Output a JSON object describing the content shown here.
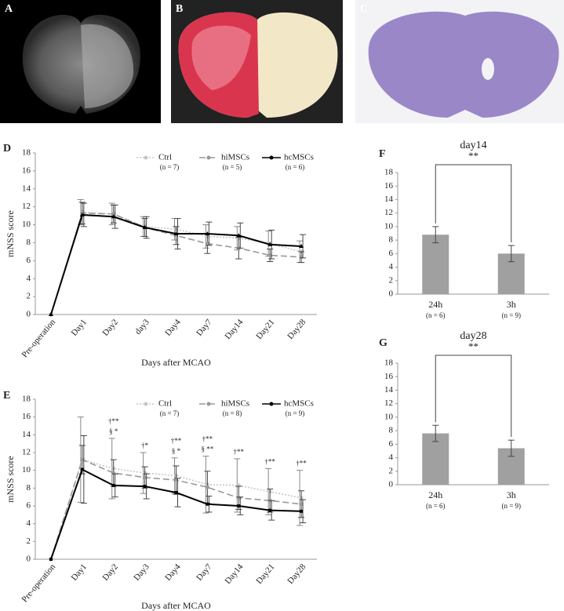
{
  "image_panels": [
    {
      "label": "A"
    },
    {
      "label": "B"
    },
    {
      "label": "C"
    }
  ],
  "chart_data": [
    {
      "type": "line",
      "panel_label": "D",
      "x_label": "Days after MCAO",
      "y_label": "mNSS score",
      "categories": [
        "Pre-operation",
        "Day1",
        "Day2",
        "day3",
        "Day4",
        "Day7",
        "Day14",
        "Day21",
        "Day28"
      ],
      "ylim": [
        0,
        18
      ],
      "yticks": [
        0,
        2,
        4,
        6,
        8,
        10,
        12,
        14,
        16,
        18
      ],
      "grid": false,
      "legend": "upper right",
      "series": [
        {
          "name": "Ctrl",
          "n_label": "(n = 7)",
          "color": "#c6c6c6",
          "dash": "dotted",
          "marker": "circle",
          "values": [
            0,
            11.4,
            11.2,
            9.8,
            9.5,
            8.7,
            8.5,
            7.9,
            7.0
          ],
          "errors": [
            0,
            1.4,
            1.2,
            1.1,
            1.2,
            1.3,
            1.3,
            1.4,
            1.2
          ]
        },
        {
          "name": "hiMSCs",
          "n_label": "(n = 5)",
          "color": "#999999",
          "dash": "dashed",
          "marker": "circle",
          "values": [
            0,
            11.3,
            11.2,
            9.7,
            8.8,
            7.9,
            7.4,
            6.6,
            6.4
          ],
          "errors": [
            0,
            1.2,
            1.0,
            1.0,
            1.0,
            1.1,
            1.2,
            0.7,
            0.6
          ]
        },
        {
          "name": "hcMSCs",
          "n_label": "(n = 6)",
          "color": "#000000",
          "dash": "solid",
          "marker": "triangle",
          "values": [
            0,
            11.1,
            10.9,
            9.7,
            9.0,
            9.0,
            8.8,
            7.8,
            7.6
          ],
          "errors": [
            0,
            1.3,
            1.3,
            1.2,
            1.7,
            1.3,
            1.4,
            1.6,
            1.3
          ]
        }
      ]
    },
    {
      "type": "line",
      "panel_label": "E",
      "x_label": "Days after MCAO",
      "y_label": "mNSS score",
      "categories": [
        "Pre-operation",
        "Day1",
        "Day2",
        "Day3",
        "Day4",
        "Day7",
        "Day14",
        "Day21",
        "Day28"
      ],
      "ylim": [
        0,
        18
      ],
      "yticks": [
        0,
        2,
        4,
        6,
        8,
        10,
        12,
        14,
        16,
        18
      ],
      "grid": false,
      "legend": "upper right",
      "annotations": [
        null,
        null,
        [
          "†**",
          "§ *"
        ],
        [
          "†*"
        ],
        [
          "†**",
          "§ *"
        ],
        [
          "†**",
          "§ **"
        ],
        [
          "†**"
        ],
        [
          "†**"
        ],
        [
          "†**"
        ]
      ],
      "series": [
        {
          "name": "Ctrl",
          "n_label": "(n = 7)",
          "color": "#c6c6c6",
          "dash": "dotted",
          "marker": "circle",
          "values": [
            0,
            11.2,
            10.2,
            9.7,
            9.4,
            8.4,
            8.3,
            7.6,
            6.9
          ],
          "errors": [
            0,
            4.8,
            3.4,
            2.3,
            2.0,
            3.2,
            3.0,
            2.6,
            3.1
          ]
        },
        {
          "name": "hiMSCs",
          "n_label": "(n = 8)",
          "color": "#999999",
          "dash": "dashed",
          "marker": "circle",
          "values": [
            0,
            11.2,
            9.7,
            9.2,
            8.9,
            8.1,
            6.9,
            6.6,
            6.2
          ],
          "errors": [
            0,
            1.6,
            1.5,
            1.2,
            1.6,
            1.8,
            1.3,
            1.3,
            1.5
          ]
        },
        {
          "name": "hcMSCs",
          "n_label": "(n = 9)",
          "color": "#000000",
          "dash": "solid",
          "marker": "square",
          "values": [
            0,
            10.1,
            8.3,
            8.2,
            7.5,
            6.2,
            6.0,
            5.5,
            5.4
          ],
          "errors": [
            0,
            3.8,
            1.3,
            1.4,
            1.6,
            0.9,
            1.0,
            1.1,
            1.3
          ]
        }
      ]
    },
    {
      "type": "bar",
      "panel_label": "F",
      "title": "day14",
      "significance": "**",
      "categories": [
        "24h",
        "3h"
      ],
      "sublabels": [
        "(n = 6)",
        "(n = 9)"
      ],
      "color": "#a0a0a0",
      "values": [
        8.8,
        6.0
      ],
      "errors": [
        1.2,
        1.2
      ],
      "ylim": [
        0,
        18
      ],
      "yticks": [
        0,
        2,
        4,
        6,
        8,
        10,
        12,
        14,
        16,
        18
      ],
      "grid": false
    },
    {
      "type": "bar",
      "panel_label": "G",
      "title": "day28",
      "significance": "**",
      "categories": [
        "24h",
        "3h"
      ],
      "sublabels": [
        "(n = 6)",
        "(n = 9)"
      ],
      "color": "#a0a0a0",
      "values": [
        7.6,
        5.4
      ],
      "errors": [
        1.2,
        1.2
      ],
      "ylim": [
        0,
        18
      ],
      "yticks": [
        0,
        2,
        4,
        6,
        8,
        10,
        12,
        14,
        16,
        18
      ],
      "grid": false
    }
  ]
}
